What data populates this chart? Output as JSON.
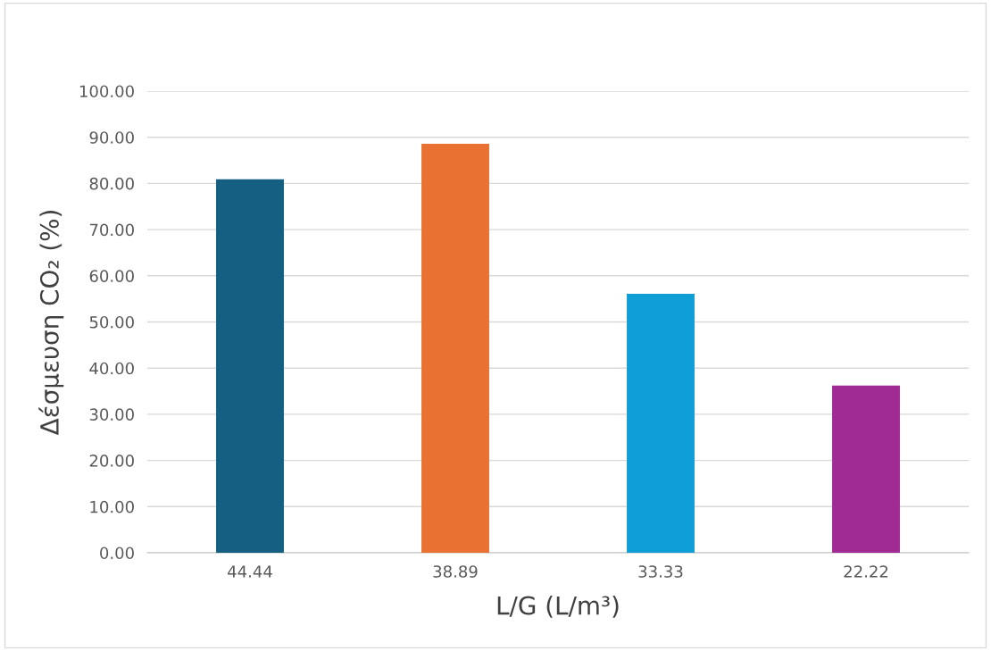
{
  "chart_data": {
    "type": "bar",
    "xlabel": "L/G (L/m³)",
    "ylabel": "Δέσμευση CO₂ (%)",
    "categories": [
      "44.44",
      "38.89",
      "33.33",
      "22.22"
    ],
    "values": [
      80.9,
      88.6,
      56.1,
      36.2
    ],
    "colors": [
      "#156082",
      "#e97132",
      "#0f9ed5",
      "#a02b93"
    ],
    "ylim": [
      0,
      100
    ],
    "yticks": [
      {
        "value": 0,
        "label": "0.00"
      },
      {
        "value": 10,
        "label": "10.00"
      },
      {
        "value": 20,
        "label": "20.00"
      },
      {
        "value": 30,
        "label": "30.00"
      },
      {
        "value": 40,
        "label": "40.00"
      },
      {
        "value": 50,
        "label": "50.00"
      },
      {
        "value": 60,
        "label": "60.00"
      },
      {
        "value": 70,
        "label": "70.00"
      },
      {
        "value": 80,
        "label": "80.00"
      },
      {
        "value": 90,
        "label": "90.00"
      },
      {
        "value": 100,
        "label": "100.00"
      }
    ],
    "grid": "y"
  }
}
